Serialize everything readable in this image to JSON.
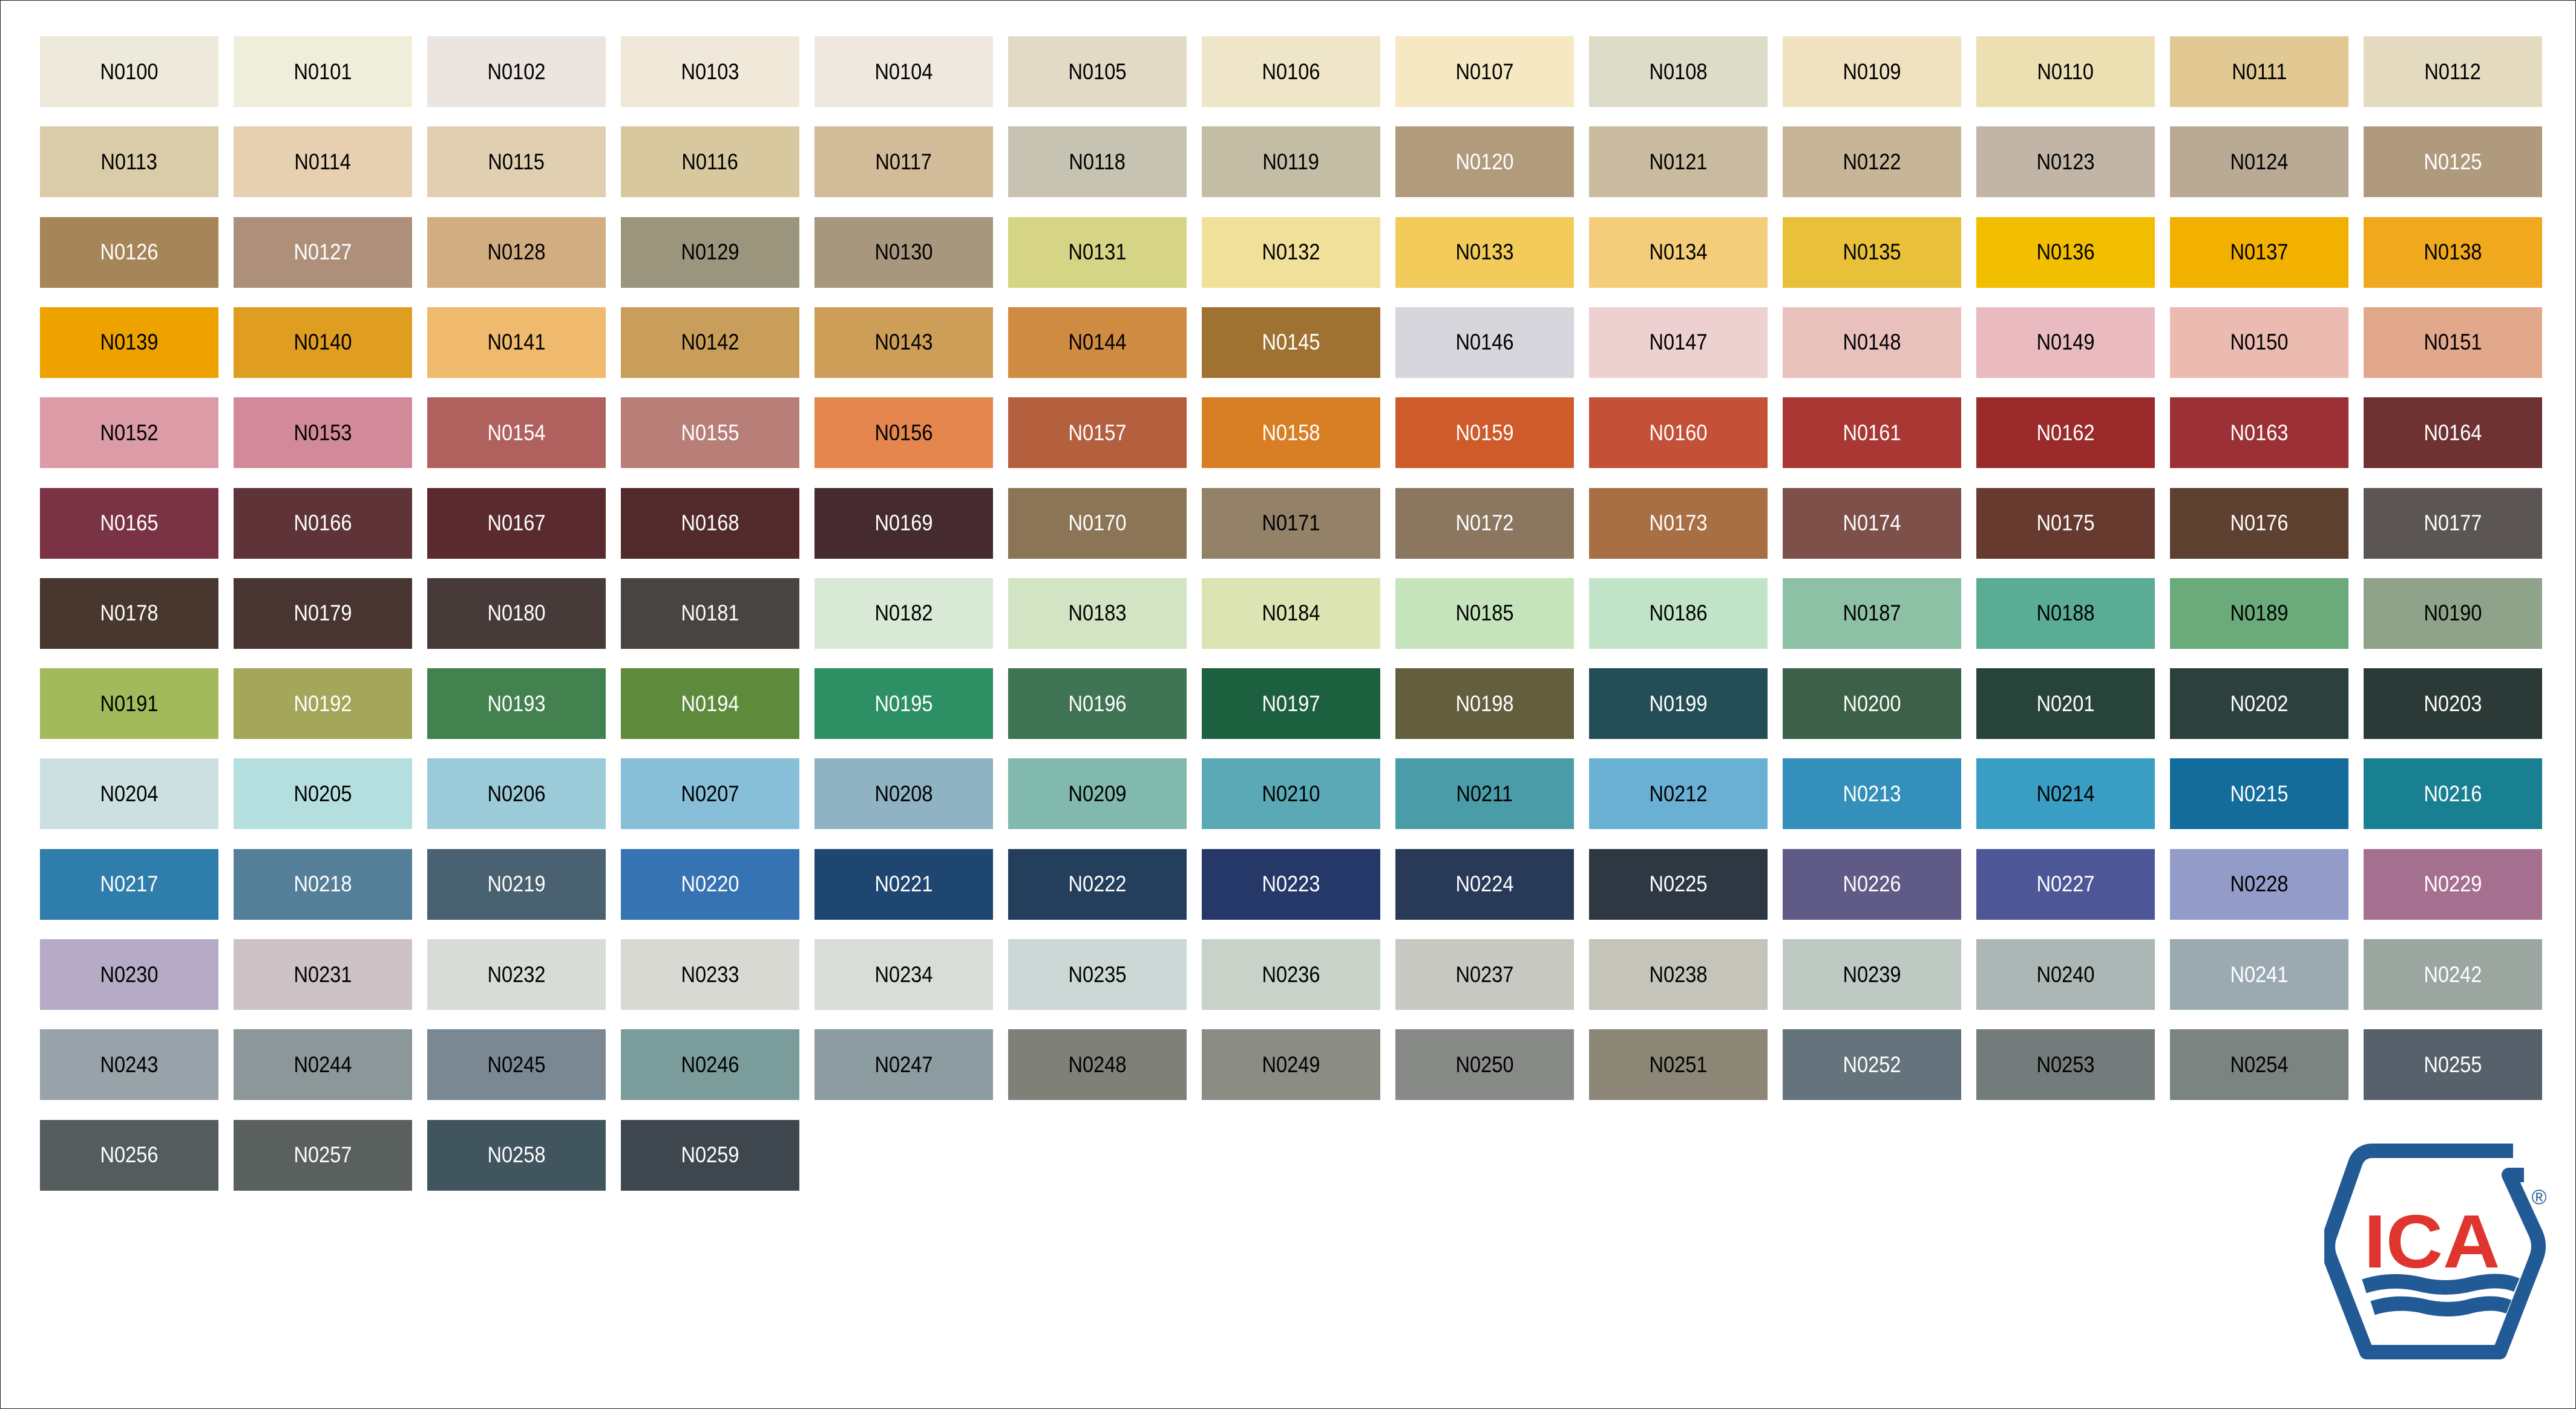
{
  "palette": {
    "swatches": [
      {
        "code": "N0100",
        "color": "#EDEADB"
      },
      {
        "code": "N0101",
        "color": "#EFEEDA"
      },
      {
        "code": "N0102",
        "color": "#ECE4DF"
      },
      {
        "code": "N0103",
        "color": "#F0E8D8"
      },
      {
        "code": "N0104",
        "color": "#EFE8DE"
      },
      {
        "code": "N0105",
        "color": "#E3DAC6"
      },
      {
        "code": "N0106",
        "color": "#EFE5C8"
      },
      {
        "code": "N0107",
        "color": "#F6E8C3"
      },
      {
        "code": "N0108",
        "color": "#DDDCC9"
      },
      {
        "code": "N0109",
        "color": "#F0E2C0"
      },
      {
        "code": "N0110",
        "color": "#ECDFB2"
      },
      {
        "code": "N0111",
        "color": "#E2C893"
      },
      {
        "code": "N0112",
        "color": "#E4DAC0"
      },
      {
        "code": "N0113",
        "color": "#DACBA9"
      },
      {
        "code": "N0114",
        "color": "#E7D0B1"
      },
      {
        "code": "N0115",
        "color": "#E0CFB1"
      },
      {
        "code": "N0116",
        "color": "#D8C8A0"
      },
      {
        "code": "N0117",
        "color": "#D2BB98"
      },
      {
        "code": "N0118",
        "color": "#C7C3B2"
      },
      {
        "code": "N0119",
        "color": "#C4BDA6"
      },
      {
        "code": "N0120",
        "color": "#B09B7C"
      },
      {
        "code": "N0121",
        "color": "#C9BBA0"
      },
      {
        "code": "N0122",
        "color": "#C8B496"
      },
      {
        "code": "N0123",
        "color": "#C2B5A7"
      },
      {
        "code": "N0124",
        "color": "#B8AA94"
      },
      {
        "code": "N0125",
        "color": "#AF9A7E"
      },
      {
        "code": "N0126",
        "color": "#A68559"
      },
      {
        "code": "N0127",
        "color": "#AE8F7A"
      },
      {
        "code": "N0128",
        "color": "#D3AD82"
      },
      {
        "code": "N0129",
        "color": "#9A957C"
      },
      {
        "code": "N0130",
        "color": "#A7977D"
      },
      {
        "code": "N0131",
        "color": "#D6D585"
      },
      {
        "code": "N0132",
        "color": "#F0E09A"
      },
      {
        "code": "N0133",
        "color": "#F2CB5A"
      },
      {
        "code": "N0134",
        "color": "#F4CD7A"
      },
      {
        "code": "N0135",
        "color": "#E8C03A"
      },
      {
        "code": "N0136",
        "color": "#F1BE00"
      },
      {
        "code": "N0137",
        "color": "#F2B000"
      },
      {
        "code": "N0138",
        "color": "#F0A81E"
      },
      {
        "code": "N0139",
        "color": "#EDA200"
      },
      {
        "code": "N0140",
        "color": "#DF9D22"
      },
      {
        "code": "N0141",
        "color": "#EFBA6E"
      },
      {
        "code": "N0142",
        "color": "#C99E5A"
      },
      {
        "code": "N0143",
        "color": "#CC9E58"
      },
      {
        "code": "N0144",
        "color": "#D08B42"
      },
      {
        "code": "N0145",
        "color": "#A07232"
      },
      {
        "code": "N0146",
        "color": "#D7D6DC"
      },
      {
        "code": "N0147",
        "color": "#EDD1D0"
      },
      {
        "code": "N0148",
        "color": "#E8C1BD"
      },
      {
        "code": "N0149",
        "color": "#E9BBC0"
      },
      {
        "code": "N0150",
        "color": "#EBBBB2"
      },
      {
        "code": "N0151",
        "color": "#E2A88C"
      },
      {
        "code": "N0152",
        "color": "#DB9BA7"
      },
      {
        "code": "N0153",
        "color": "#D28A9A"
      },
      {
        "code": "N0154",
        "color": "#B0615E"
      },
      {
        "code": "N0155",
        "color": "#B77F78"
      },
      {
        "code": "N0156",
        "color": "#E4864E"
      },
      {
        "code": "N0157",
        "color": "#B4603F"
      },
      {
        "code": "N0158",
        "color": "#D87F25"
      },
      {
        "code": "N0159",
        "color": "#CF5A2A"
      },
      {
        "code": "N0160",
        "color": "#C55038"
      },
      {
        "code": "N0161",
        "color": "#A93834"
      },
      {
        "code": "N0162",
        "color": "#9B2A2B"
      },
      {
        "code": "N0163",
        "color": "#9B3035"
      },
      {
        "code": "N0164",
        "color": "#6E3232"
      },
      {
        "code": "N0165",
        "color": "#7A3344"
      },
      {
        "code": "N0166",
        "color": "#5E3438"
      },
      {
        "code": "N0167",
        "color": "#5B2A2E"
      },
      {
        "code": "N0168",
        "color": "#532A2C"
      },
      {
        "code": "N0169",
        "color": "#452B30"
      },
      {
        "code": "N0170",
        "color": "#8C7556"
      },
      {
        "code": "N0171",
        "color": "#938168"
      },
      {
        "code": "N0172",
        "color": "#8B7660"
      },
      {
        "code": "N0173",
        "color": "#A86F45"
      },
      {
        "code": "N0174",
        "color": "#7D5149"
      },
      {
        "code": "N0175",
        "color": "#673A30"
      },
      {
        "code": "N0176",
        "color": "#5E4030"
      },
      {
        "code": "N0177",
        "color": "#5B5653"
      },
      {
        "code": "N0178",
        "color": "#47372F"
      },
      {
        "code": "N0179",
        "color": "#483532"
      },
      {
        "code": "N0180",
        "color": "#473B39"
      },
      {
        "code": "N0181",
        "color": "#474441"
      },
      {
        "code": "N0182",
        "color": "#D8E9D6"
      },
      {
        "code": "N0183",
        "color": "#D2E4C3"
      },
      {
        "code": "N0184",
        "color": "#DCE4B3"
      },
      {
        "code": "N0185",
        "color": "#C5E4BC"
      },
      {
        "code": "N0186",
        "color": "#C1E4C8"
      },
      {
        "code": "N0187",
        "color": "#8EC0A6"
      },
      {
        "code": "N0188",
        "color": "#5BAC94"
      },
      {
        "code": "N0189",
        "color": "#6BAA7B"
      },
      {
        "code": "N0190",
        "color": "#8FA38A"
      },
      {
        "code": "N0191",
        "color": "#A3BA5C"
      },
      {
        "code": "N0192",
        "color": "#A4A65A"
      },
      {
        "code": "N0193",
        "color": "#43814F"
      },
      {
        "code": "N0194",
        "color": "#5E8A3B"
      },
      {
        "code": "N0195",
        "color": "#2D8F64"
      },
      {
        "code": "N0196",
        "color": "#3F7454"
      },
      {
        "code": "N0197",
        "color": "#1D6040"
      },
      {
        "code": "N0198",
        "color": "#635E3E"
      },
      {
        "code": "N0199",
        "color": "#244E55"
      },
      {
        "code": "N0200",
        "color": "#3C6048"
      },
      {
        "code": "N0201",
        "color": "#28433A"
      },
      {
        "code": "N0202",
        "color": "#2C403E"
      },
      {
        "code": "N0203",
        "color": "#2C3A37"
      },
      {
        "code": "N0204",
        "color": "#CDE0E1"
      },
      {
        "code": "N0205",
        "color": "#B5DFDF"
      },
      {
        "code": "N0206",
        "color": "#9BCBD8"
      },
      {
        "code": "N0207",
        "color": "#86BFD7"
      },
      {
        "code": "N0208",
        "color": "#8FB3C3"
      },
      {
        "code": "N0209",
        "color": "#81B9AE"
      },
      {
        "code": "N0210",
        "color": "#5BA9B6"
      },
      {
        "code": "N0211",
        "color": "#4A9CA8"
      },
      {
        "code": "N0212",
        "color": "#6AB0D4"
      },
      {
        "code": "N0213",
        "color": "#3490BA"
      },
      {
        "code": "N0214",
        "color": "#3A9EC4"
      },
      {
        "code": "N0215",
        "color": "#136C9A"
      },
      {
        "code": "N0216",
        "color": "#198092"
      },
      {
        "code": "N0217",
        "color": "#2F7DAA"
      },
      {
        "code": "N0218",
        "color": "#557F99"
      },
      {
        "code": "N0219",
        "color": "#4A6171"
      },
      {
        "code": "N0220",
        "color": "#3673B2"
      },
      {
        "code": "N0221",
        "color": "#1E4670"
      },
      {
        "code": "N0222",
        "color": "#233F5C"
      },
      {
        "code": "N0223",
        "color": "#253868"
      },
      {
        "code": "N0224",
        "color": "#283A58"
      },
      {
        "code": "N0225",
        "color": "#2D3842"
      },
      {
        "code": "N0226",
        "color": "#5F5B86"
      },
      {
        "code": "N0227",
        "color": "#4D5797"
      },
      {
        "code": "N0228",
        "color": "#939BC9"
      },
      {
        "code": "N0229",
        "color": "#A5708F"
      },
      {
        "code": "N0230",
        "color": "#B5ABC6"
      },
      {
        "code": "N0231",
        "color": "#CDC3C6"
      },
      {
        "code": "N0232",
        "color": "#D8DCD6"
      },
      {
        "code": "N0233",
        "color": "#D9D9D4"
      },
      {
        "code": "N0234",
        "color": "#D8DDD8"
      },
      {
        "code": "N0235",
        "color": "#CCD8D6"
      },
      {
        "code": "N0236",
        "color": "#C8D2C8"
      },
      {
        "code": "N0237",
        "color": "#C7C8C1"
      },
      {
        "code": "N0238",
        "color": "#C4C4BA"
      },
      {
        "code": "N0239",
        "color": "#BFC9C4"
      },
      {
        "code": "N0240",
        "color": "#ACB6B5"
      },
      {
        "code": "N0241",
        "color": "#9AAAB0"
      },
      {
        "code": "N0242",
        "color": "#9BA6A0"
      },
      {
        "code": "N0243",
        "color": "#98A3A9"
      },
      {
        "code": "N0244",
        "color": "#8B9799"
      },
      {
        "code": "N0245",
        "color": "#7A8894"
      },
      {
        "code": "N0246",
        "color": "#7A9D9C"
      },
      {
        "code": "N0247",
        "color": "#8C9CA0"
      },
      {
        "code": "N0248",
        "color": "#7F8178"
      },
      {
        "code": "N0249",
        "color": "#8B8D84"
      },
      {
        "code": "N0250",
        "color": "#878A87"
      },
      {
        "code": "N0251",
        "color": "#8C8676"
      },
      {
        "code": "N0252",
        "color": "#65737C"
      },
      {
        "code": "N0253",
        "color": "#737B7B"
      },
      {
        "code": "N0254",
        "color": "#7B8481"
      },
      {
        "code": "N0255",
        "color": "#56616B"
      },
      {
        "code": "N0256",
        "color": "#555C5E"
      },
      {
        "code": "N0257",
        "color": "#5A605D"
      },
      {
        "code": "N0258",
        "color": "#41555F"
      },
      {
        "code": "N0259",
        "color": "#3F474E"
      }
    ],
    "white_label_codes": [
      "N0120",
      "N0125",
      "N0126",
      "N0127",
      "N0145",
      "N0154",
      "N0155",
      "N0157",
      "N0158",
      "N0159",
      "N0160",
      "N0161",
      "N0162",
      "N0163",
      "N0164",
      "N0165",
      "N0166",
      "N0167",
      "N0168",
      "N0169",
      "N0170",
      "N0172",
      "N0173",
      "N0174",
      "N0175",
      "N0176",
      "N0177",
      "N0178",
      "N0179",
      "N0180",
      "N0181",
      "N0192",
      "N0193",
      "N0194",
      "N0195",
      "N0196",
      "N0197",
      "N0198",
      "N0199",
      "N0200",
      "N0201",
      "N0202",
      "N0203",
      "N0213",
      "N0215",
      "N0216",
      "N0217",
      "N0218",
      "N0219",
      "N0220",
      "N0221",
      "N0222",
      "N0223",
      "N0224",
      "N0225",
      "N0226",
      "N0227",
      "N0229",
      "N0241",
      "N0242",
      "N0252",
      "N0255",
      "N0256",
      "N0257",
      "N0258",
      "N0259"
    ],
    "label_dark_color": "#000000",
    "label_light_color": "#FFFFFF"
  },
  "logo": {
    "text": "ICA",
    "registered_mark": "®",
    "blue": "#225A96",
    "red": "#E0342F"
  }
}
